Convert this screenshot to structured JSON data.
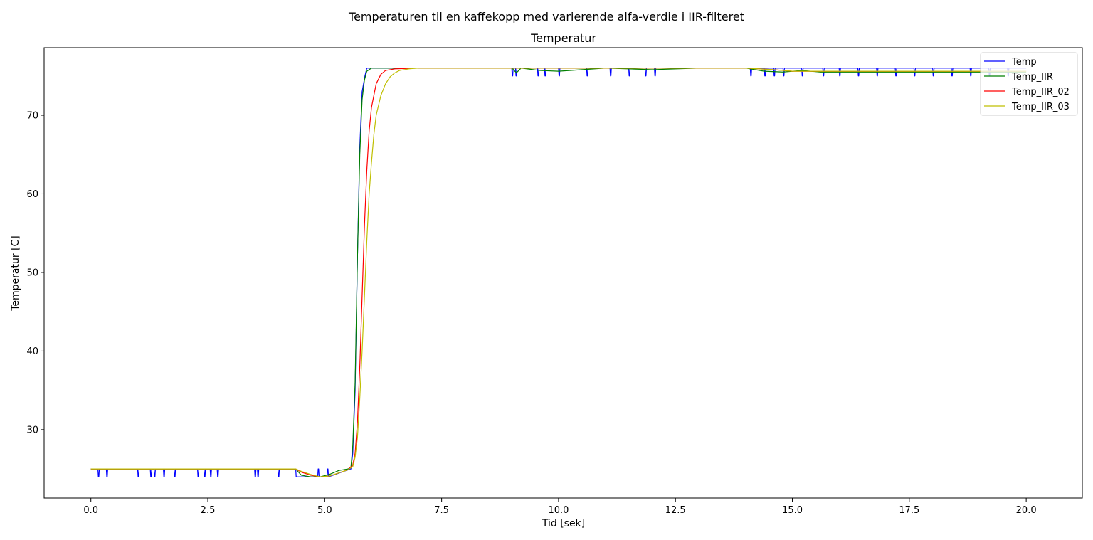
{
  "figure": {
    "suptitle": "Temperaturen til en kaffekopp med varierende alfa-verdie i IIR-filteret"
  },
  "chart_data": {
    "type": "line",
    "title": "Temperatur",
    "xlabel": "Tid [sek]",
    "ylabel": "Temperatur [C]",
    "xlim": [
      -1.0,
      21.2
    ],
    "ylim": [
      21.3,
      78.6
    ],
    "xticks": [
      0.0,
      2.5,
      5.0,
      7.5,
      10.0,
      12.5,
      15.0,
      17.5,
      20.0
    ],
    "xtick_labels": [
      "0.0",
      "2.5",
      "5.0",
      "7.5",
      "10.0",
      "12.5",
      "15.0",
      "17.5",
      "20.0"
    ],
    "yticks": [
      30,
      40,
      50,
      60,
      70
    ],
    "ytick_labels": [
      "30",
      "40",
      "50",
      "60",
      "70"
    ],
    "grid": false,
    "legend_position": "top-right",
    "series": [
      {
        "name": "Temp",
        "color": "#0000ff",
        "x": [
          0.0,
          0.15,
          0.16,
          0.17,
          0.18,
          0.33,
          0.34,
          0.35,
          0.36,
          1.0,
          1.01,
          1.02,
          1.03,
          1.27,
          1.28,
          1.29,
          1.3,
          1.35,
          1.36,
          1.37,
          1.38,
          1.55,
          1.56,
          1.57,
          1.58,
          1.78,
          1.79,
          1.8,
          1.81,
          2.28,
          2.29,
          2.3,
          2.31,
          2.42,
          2.43,
          2.44,
          2.45,
          2.55,
          2.56,
          2.57,
          2.58,
          2.7,
          2.71,
          2.72,
          2.73,
          3.5,
          3.51,
          3.52,
          3.53,
          3.56,
          3.57,
          3.58,
          3.59,
          4.0,
          4.01,
          4.02,
          4.03,
          4.38,
          4.39,
          4.85,
          4.86,
          4.87,
          4.88,
          5.05,
          5.06,
          5.07,
          5.08,
          5.55,
          5.56,
          5.6,
          5.65,
          5.7,
          5.75,
          5.8,
          5.83,
          5.86,
          5.9,
          5.95,
          9.0,
          9.01,
          9.02,
          9.03,
          9.08,
          9.09,
          9.1,
          9.11,
          9.55,
          9.56,
          9.57,
          9.58,
          9.7,
          9.71,
          9.72,
          9.73,
          10.0,
          10.01,
          10.02,
          10.03,
          10.6,
          10.61,
          10.62,
          10.63,
          11.1,
          11.11,
          11.12,
          11.13,
          11.5,
          11.51,
          11.52,
          11.53,
          11.85,
          11.86,
          11.87,
          11.88,
          12.05,
          12.06,
          12.07,
          12.08,
          14.1,
          14.11,
          14.12,
          14.13,
          14.4,
          14.41,
          14.42,
          14.43,
          14.6,
          14.61,
          14.62,
          14.63,
          14.8,
          14.81,
          14.82,
          14.83,
          15.2,
          15.21,
          15.22,
          15.23,
          15.65,
          15.66,
          15.67,
          15.68,
          16.0,
          16.01,
          16.02,
          16.03,
          16.4,
          16.41,
          16.42,
          16.43,
          16.8,
          16.81,
          16.82,
          16.83,
          17.2,
          17.21,
          17.22,
          17.23,
          17.6,
          17.61,
          17.62,
          17.63,
          18.0,
          18.01,
          18.02,
          18.03,
          18.4,
          18.41,
          18.42,
          18.43,
          18.8,
          18.81,
          18.82,
          18.83,
          19.2,
          19.21,
          19.22,
          19.23,
          19.6,
          19.61,
          19.62,
          19.63,
          20.0
        ],
        "y": [
          25,
          25,
          24,
          24,
          25,
          25,
          24,
          24,
          25,
          25,
          24,
          24,
          25,
          25,
          24,
          24,
          25,
          25,
          24,
          24,
          25,
          25,
          24,
          24,
          25,
          25,
          24,
          24,
          25,
          25,
          24,
          24,
          25,
          25,
          24,
          24,
          25,
          25,
          24,
          24,
          25,
          25,
          24,
          24,
          25,
          25,
          24,
          24,
          25,
          25,
          24,
          24,
          25,
          25,
          24,
          24,
          25,
          25,
          24,
          24,
          25,
          25,
          24,
          24,
          25,
          25,
          24,
          25,
          25,
          27,
          35,
          52,
          66,
          73,
          74,
          75,
          76,
          76,
          76,
          75,
          75,
          76,
          76,
          75,
          75,
          76,
          76,
          75,
          75,
          76,
          76,
          75,
          75,
          76,
          76,
          75,
          75,
          76,
          76,
          75,
          75,
          76,
          76,
          75,
          75,
          76,
          76,
          75,
          75,
          76,
          76,
          75,
          75,
          76,
          76,
          75,
          75,
          76,
          76,
          75,
          75,
          76,
          76,
          75,
          75,
          76,
          76,
          75,
          75,
          76,
          76,
          75,
          75,
          76,
          76,
          75,
          75,
          76,
          76,
          75,
          75,
          76,
          76,
          75,
          75,
          76,
          76,
          75,
          75,
          76,
          76,
          75,
          75,
          76,
          76,
          75,
          75,
          76,
          76,
          75,
          75,
          76,
          76,
          75,
          75,
          76,
          76,
          75,
          75,
          76,
          76,
          75,
          75,
          76,
          76,
          75,
          75,
          76,
          76,
          75,
          75,
          76,
          76
        ]
      },
      {
        "name": "Temp_IIR",
        "color": "#008000",
        "x": [
          0.0,
          0.5,
          1.0,
          1.5,
          2.0,
          2.5,
          3.0,
          3.5,
          4.0,
          4.38,
          4.5,
          4.7,
          4.9,
          5.1,
          5.3,
          5.5,
          5.56,
          5.6,
          5.65,
          5.7,
          5.75,
          5.8,
          5.85,
          5.9,
          6.0,
          6.5,
          8.0,
          9.0,
          9.1,
          9.2,
          9.6,
          10.0,
          11.0,
          12.0,
          13.0,
          14.0,
          14.4,
          14.8,
          15.2,
          15.6,
          16.0,
          16.5,
          17.0,
          17.5,
          18.0,
          18.5,
          19.0,
          19.5,
          20.0
        ],
        "y": [
          25,
          25,
          25,
          25,
          25,
          25,
          25,
          25,
          25,
          25,
          24.2,
          24.0,
          24.0,
          24.3,
          24.8,
          25,
          25.2,
          28,
          36,
          52,
          65,
          72,
          74.5,
          75.6,
          76,
          76,
          76,
          76,
          75.4,
          76,
          75.7,
          75.6,
          76,
          75.8,
          76,
          76,
          75.6,
          75.5,
          75.7,
          75.5,
          75.5,
          75.5,
          75.5,
          75.5,
          75.5,
          75.5,
          75.5,
          75.5,
          75.5
        ]
      },
      {
        "name": "Temp_IIR_02",
        "color": "#ff0000",
        "x": [
          0.0,
          1.0,
          2.0,
          3.0,
          4.0,
          4.38,
          4.5,
          4.7,
          4.9,
          5.1,
          5.3,
          5.5,
          5.6,
          5.65,
          5.7,
          5.75,
          5.8,
          5.85,
          5.9,
          5.95,
          6.0,
          6.1,
          6.2,
          6.3,
          6.5,
          7.0,
          8.0,
          10.0,
          12.0,
          14.0,
          14.6,
          15.0,
          16.0,
          17.0,
          18.0,
          19.0,
          20.0
        ],
        "y": [
          25,
          25,
          25,
          25,
          25,
          25,
          24.6,
          24.2,
          24.0,
          24.1,
          24.5,
          24.9,
          25.5,
          27,
          31,
          38,
          47,
          56,
          63,
          68,
          71,
          74,
          75.2,
          75.7,
          75.9,
          76,
          76,
          76,
          76,
          76,
          75.8,
          75.6,
          75.6,
          75.6,
          75.6,
          75.6,
          75.6
        ]
      },
      {
        "name": "Temp_IIR_03",
        "color": "#bfbf00",
        "x": [
          0.0,
          1.0,
          2.0,
          3.0,
          4.0,
          4.38,
          4.5,
          4.7,
          4.9,
          5.1,
          5.3,
          5.5,
          5.6,
          5.65,
          5.7,
          5.75,
          5.8,
          5.85,
          5.9,
          5.95,
          6.0,
          6.05,
          6.1,
          6.2,
          6.3,
          6.4,
          6.5,
          6.6,
          6.8,
          7.0,
          8.0,
          10.0,
          12.0,
          14.0,
          14.6,
          15.0,
          16.0,
          17.0,
          18.0,
          19.0,
          20.0
        ],
        "y": [
          25,
          25,
          25,
          25,
          25,
          25,
          24.7,
          24.3,
          24.0,
          24.1,
          24.5,
          24.9,
          25.3,
          26.5,
          29,
          34,
          40,
          47,
          54,
          60,
          64,
          67.5,
          70,
          72.5,
          74,
          74.9,
          75.4,
          75.7,
          75.9,
          76,
          76,
          76,
          76,
          76,
          75.8,
          75.6,
          75.6,
          75.6,
          75.6,
          75.6,
          75.6
        ]
      }
    ]
  }
}
